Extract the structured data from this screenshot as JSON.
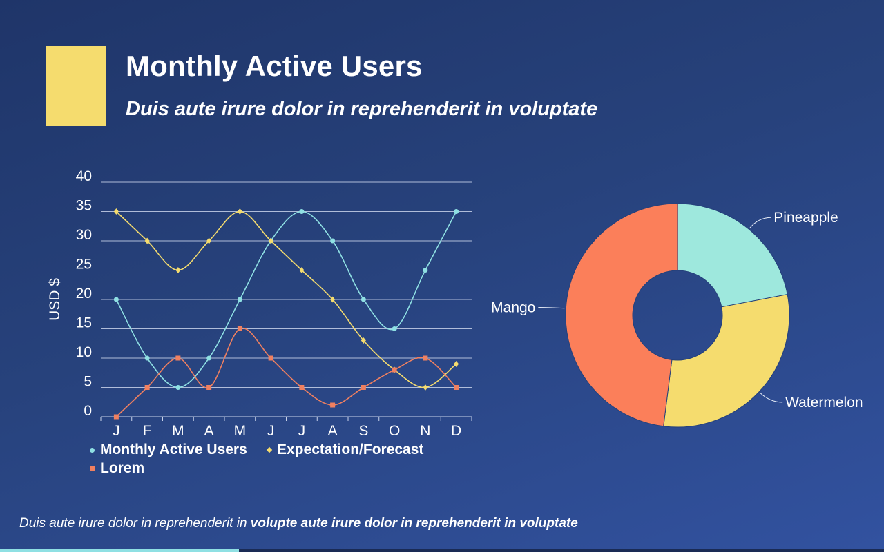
{
  "slide": {
    "title": "Monthly Active Users",
    "subtitle": "Duis aute irure dolor in reprehenderit in voluptate",
    "footer_regular": "Duis aute irure dolor in reprehenderit in ",
    "footer_bold": "volupte aute irure dolor in reprehenderit in voluptate",
    "accent_color": "#f5dc6e",
    "progress": 0.27
  },
  "chart_data": [
    {
      "type": "line",
      "title": "",
      "xlabel": "",
      "ylabel": "USD $",
      "ylim": [
        0,
        40
      ],
      "yticks": [
        0,
        5,
        10,
        15,
        20,
        25,
        30,
        35,
        40
      ],
      "categories": [
        "J",
        "F",
        "M",
        "A",
        "M",
        "J",
        "J",
        "A",
        "S",
        "O",
        "N",
        "D"
      ],
      "series": [
        {
          "name": "Monthly Active Users",
          "color": "#8fe0e3",
          "marker": "circle",
          "values": [
            20,
            10,
            5,
            10,
            20,
            30,
            35,
            30,
            20,
            15,
            25,
            35
          ]
        },
        {
          "name": "Expectation/Forecast",
          "color": "#f5dc6e",
          "marker": "diamond",
          "values": [
            35,
            30,
            25,
            30,
            35,
            30,
            25,
            20,
            13,
            8,
            5,
            9
          ]
        },
        {
          "name": "Lorem",
          "color": "#f08060",
          "marker": "square",
          "values": [
            0,
            5,
            10,
            5,
            15,
            10,
            5,
            2,
            5,
            8,
            10,
            5
          ]
        }
      ],
      "legend": "bottom"
    },
    {
      "type": "pie",
      "donut": true,
      "labels": [
        "Pineapple",
        "Watermelon",
        "Mango"
      ],
      "values": [
        22,
        30,
        48
      ],
      "colors": [
        "#9ee8dd",
        "#f5dc6e",
        "#fb7f5a"
      ]
    }
  ]
}
